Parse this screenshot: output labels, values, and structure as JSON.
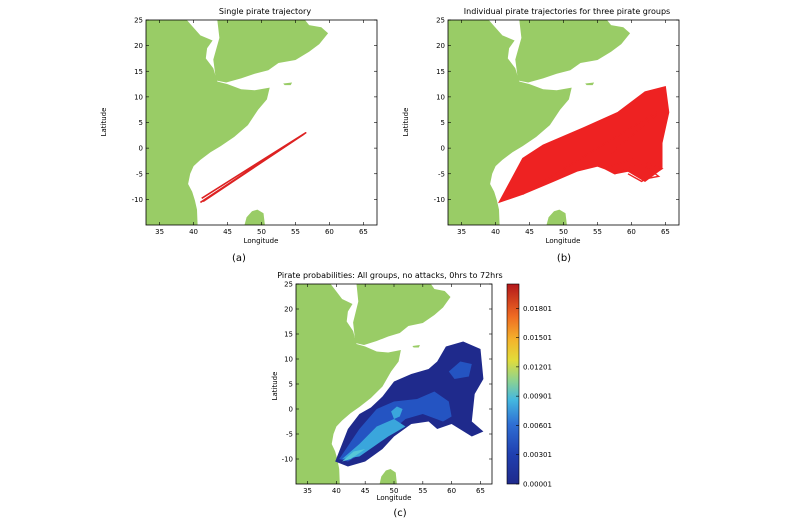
{
  "chart_data": [
    {
      "panel_label": "(a)",
      "type": "line",
      "title": "Single pirate trajectory",
      "xlabel": "Longitude",
      "ylabel": "Latitude",
      "xlim": [
        33,
        67
      ],
      "ylim": [
        -15,
        25
      ],
      "xticks": [
        35,
        40,
        45,
        50,
        55,
        60,
        65
      ],
      "yticks": [
        25,
        20,
        15,
        10,
        5,
        0,
        -5,
        -10
      ],
      "grid": false,
      "colors": {
        "land": "#99cc66",
        "trajectory": "#dd2222"
      },
      "series": [
        {
          "x": [
            41.0,
            56.5,
            41.2
          ],
          "y": [
            -10.6,
            3.0,
            -9.8
          ]
        },
        {
          "x": [
            41.4,
            56.2,
            41.8
          ],
          "y": [
            -10.4,
            2.7,
            -10.0
          ]
        }
      ]
    },
    {
      "panel_label": "(b)",
      "type": "line",
      "title": "Individual pirate trajectories for three pirate groups",
      "xlabel": "Longitude",
      "ylabel": "Latitude",
      "xlim": [
        33,
        67
      ],
      "ylim": [
        -15,
        25
      ],
      "xticks": [
        35,
        40,
        45,
        50,
        55,
        60,
        65
      ],
      "yticks": [
        25,
        20,
        15,
        10,
        5,
        0,
        -5,
        -10
      ],
      "grid": false,
      "colors": {
        "land": "#99cc66",
        "trajectory": "#ee2222"
      },
      "region": {
        "x": [
          40.5,
          44,
          47,
          53,
          58,
          62,
          65,
          65.5,
          64.5,
          64.5,
          62.0,
          59.5,
          57.5,
          56.0,
          55.0,
          52.0,
          48.5,
          44.0
        ],
        "y": [
          -10.6,
          -2.0,
          0.6,
          4.0,
          7.0,
          11.0,
          12.0,
          7.0,
          1.0,
          -4.0,
          -6.5,
          -4.5,
          -5.0,
          -4.0,
          -3.5,
          -4.5,
          -6.5,
          -9.0
        ]
      },
      "series": [
        {
          "x": [
            56.0,
            60.5,
            64.5,
            61.5,
            59.5
          ],
          "y": [
            -4.0,
            -2.0,
            -4.0,
            -6.5,
            -5.0
          ]
        },
        {
          "x": [
            57.5,
            61.5,
            64.0,
            62.0
          ],
          "y": [
            -5.0,
            -3.0,
            -5.5,
            -6.0
          ]
        },
        {
          "x": [
            44.0,
            55.0,
            65.0,
            57.0
          ],
          "y": [
            -9.0,
            0.0,
            8.0,
            -1.0
          ]
        }
      ]
    },
    {
      "panel_label": "(c)",
      "type": "heatmap",
      "title": "Pirate probabilities: All groups, no attacks, 0hrs to 72hrs",
      "xlabel": "Longitude",
      "ylabel": "Latitude",
      "xlim": [
        33,
        67
      ],
      "ylim": [
        -15,
        25
      ],
      "xticks": [
        35,
        40,
        45,
        50,
        55,
        60,
        65
      ],
      "yticks": [
        25,
        20,
        15,
        10,
        5,
        0,
        -5,
        -10
      ],
      "grid": false,
      "colorbar_ticks": [
        "0.01801",
        "0.01501",
        "0.01201",
        "0.00901",
        "0.00601",
        "0.00301",
        "0.00001"
      ],
      "colorbar_range": [
        1e-05,
        0.0205
      ],
      "colors": {
        "land": "#99cc66"
      },
      "colormap": [
        "#1f2a8c",
        "#1f3fa6",
        "#2454c2",
        "#2f72d4",
        "#3aa6dc",
        "#57c7d8",
        "#8fd38e",
        "#c8df4a",
        "#f0d232",
        "#f4a329",
        "#ef6a22",
        "#e03a1f",
        "#b3171b"
      ],
      "contour_levels": [
        {
          "value": 1e-05,
          "x": [
            39.8,
            42.0,
            44.0,
            46.0,
            48.0,
            50.0,
            53.0,
            56.0,
            57.5,
            59.0,
            62.0,
            65.0,
            65.5,
            64.0,
            63.5,
            65.5,
            63.5,
            60.0,
            57.5,
            56.0,
            53.0,
            50.0,
            48.0,
            45.0,
            42.0
          ],
          "y": [
            -10.5,
            -4.0,
            -1.0,
            0.3,
            2.5,
            5.5,
            7.0,
            8.0,
            9.5,
            12.5,
            13.5,
            12.0,
            6.0,
            3.0,
            -2.5,
            -4.5,
            -5.5,
            -3.0,
            -4.0,
            -2.5,
            -3.0,
            -5.5,
            -8.0,
            -10.5,
            -11.5
          ]
        },
        {
          "value": 0.00301,
          "x": [
            40.5,
            44.0,
            47.0,
            50.0,
            54.0,
            57.0,
            59.5,
            60.0,
            58.5,
            55.0,
            52.0,
            49.0,
            45.0,
            42.0
          ],
          "y": [
            -10.0,
            -4.0,
            0.0,
            1.5,
            2.0,
            3.5,
            1.5,
            -1.5,
            -2.5,
            -1.0,
            -2.0,
            -5.0,
            -8.5,
            -10.5
          ]
        },
        {
          "value": 0.00601,
          "x": [
            41.0,
            44.0,
            47.0,
            50.0,
            52.0,
            49.0,
            46.5,
            44.0
          ],
          "y": [
            -10.0,
            -7.0,
            -3.5,
            -2.0,
            -3.5,
            -5.5,
            -7.5,
            -9.5
          ]
        },
        {
          "value": 0.00901,
          "x": [
            41.0,
            43.0,
            45.0,
            42.5
          ],
          "y": [
            -10.5,
            -8.5,
            -8.0,
            -10.0
          ]
        },
        {
          "value": 0.00301,
          "x": [
            59.5,
            61.5,
            63.5,
            63.0,
            60.5
          ],
          "y": [
            7.5,
            9.5,
            9.0,
            6.5,
            6.0
          ]
        },
        {
          "value": 0.00601,
          "x": [
            49.5,
            50.5,
            51.5,
            51.0,
            50.0
          ],
          "y": [
            -0.5,
            0.5,
            0.0,
            -1.5,
            -2.0
          ]
        }
      ]
    }
  ]
}
